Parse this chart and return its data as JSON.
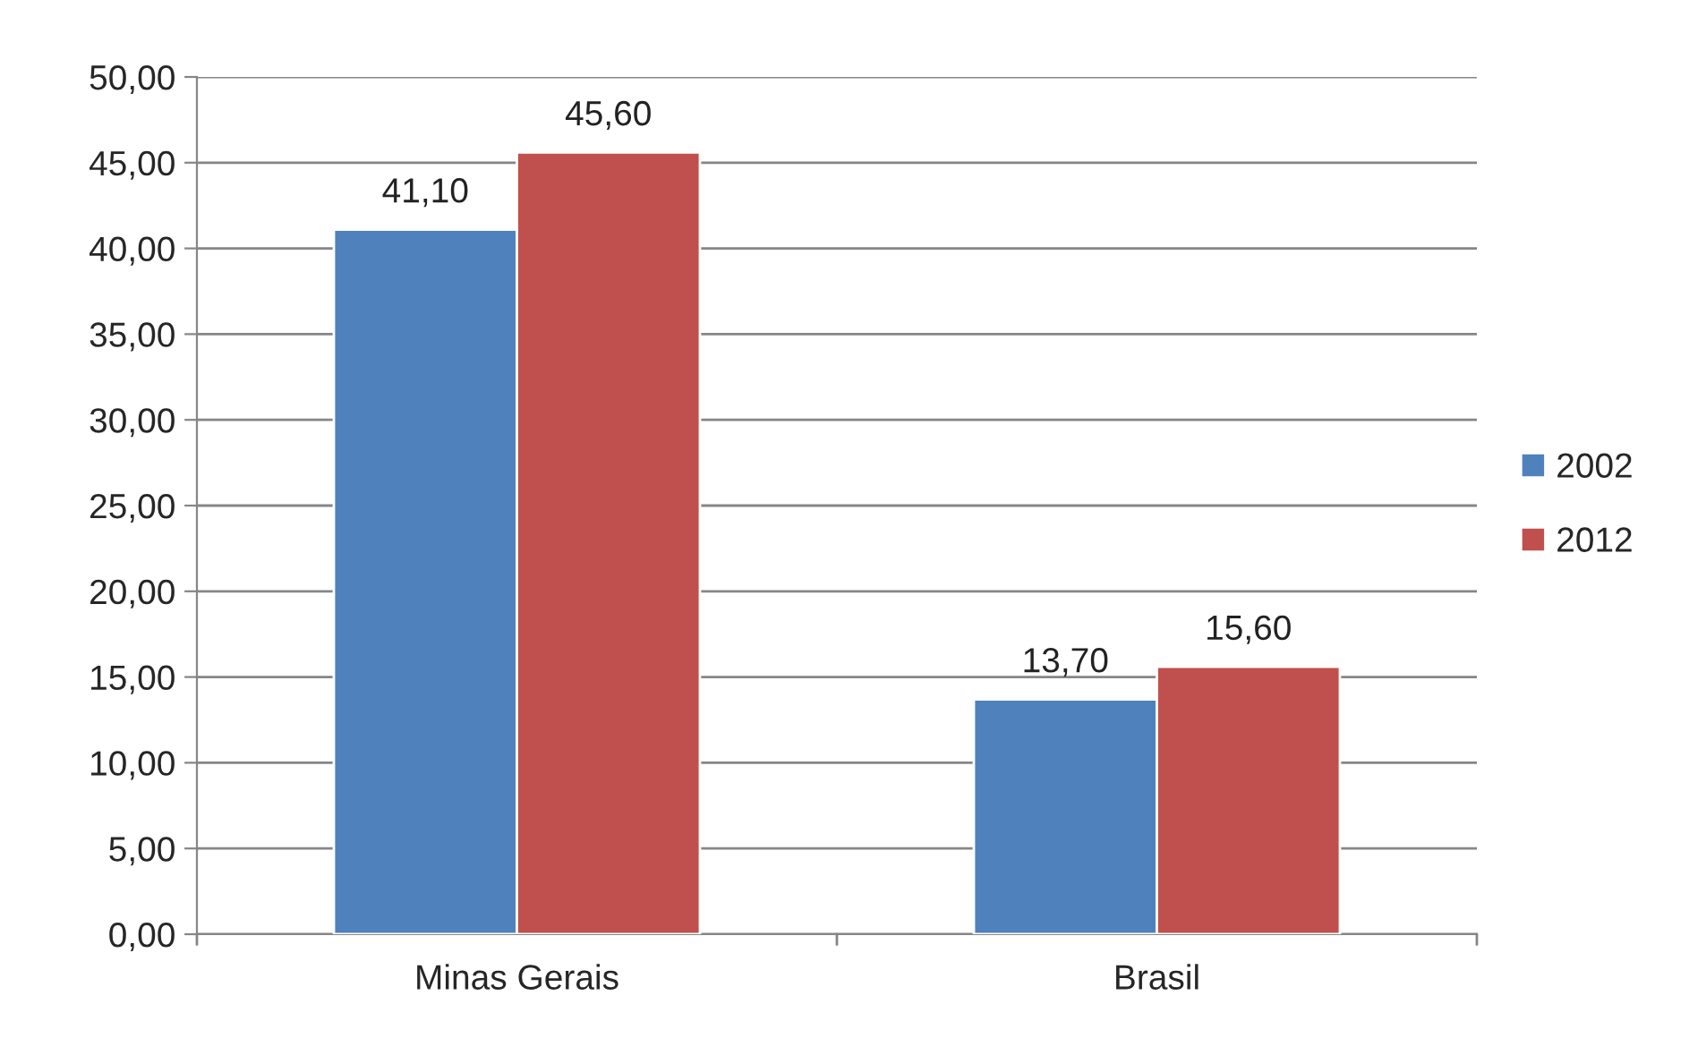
{
  "chart_data": {
    "type": "bar",
    "categories": [
      "Minas Gerais",
      "Brasil"
    ],
    "series": [
      {
        "name": "2002",
        "color": "#4f81bd",
        "values": [
          41.1,
          13.7
        ],
        "value_labels": [
          "41,10",
          "13,70"
        ]
      },
      {
        "name": "2012",
        "color": "#c0504d",
        "values": [
          45.6,
          15.6
        ],
        "value_labels": [
          "45,60",
          "15,60"
        ]
      }
    ],
    "ylim": [
      0,
      50
    ],
    "yticks": [
      {
        "value": 0,
        "label": "0,00"
      },
      {
        "value": 5,
        "label": "5,00"
      },
      {
        "value": 10,
        "label": "10,00"
      },
      {
        "value": 15,
        "label": "15,00"
      },
      {
        "value": 20,
        "label": "20,00"
      },
      {
        "value": 25,
        "label": "25,00"
      },
      {
        "value": 30,
        "label": "30,00"
      },
      {
        "value": 35,
        "label": "35,00"
      },
      {
        "value": 40,
        "label": "40,00"
      },
      {
        "value": 45,
        "label": "45,00"
      },
      {
        "value": 50,
        "label": "50,00"
      }
    ],
    "grid": "y",
    "legend": "right"
  }
}
